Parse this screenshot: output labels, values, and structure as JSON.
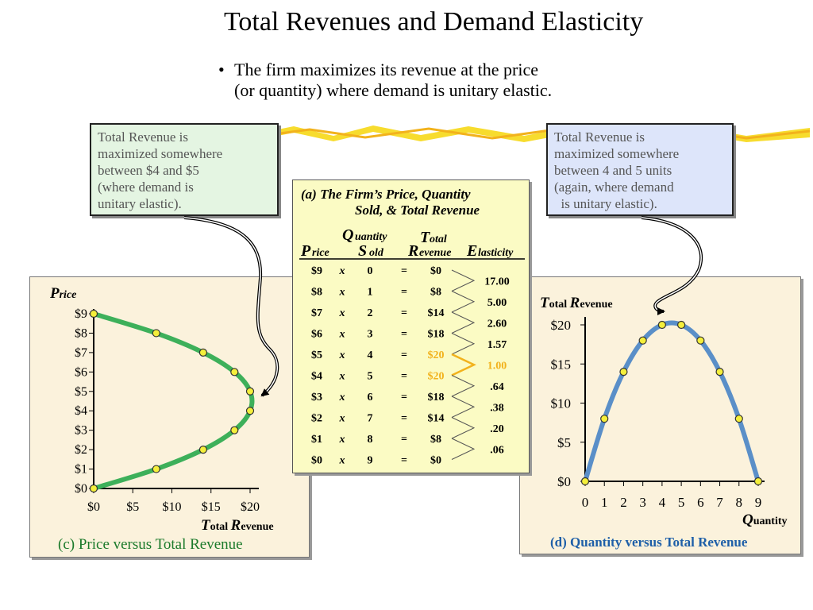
{
  "title": "Total Revenues and Demand Elasticity",
  "bullet": {
    "line1": "The firm maximizes its revenue at the price",
    "line2": "(or quantity) where demand is unitary elastic."
  },
  "callout_left": {
    "lines": [
      "Total Revenue is",
      "maximized somewhere",
      "between $4 and $5",
      "(where demand is",
      "unitary elastic)."
    ]
  },
  "callout_right": {
    "lines": [
      "Total Revenue is",
      "maximized somewhere",
      "between 4 and 5 units",
      "(again, where demand",
      "  is unitary elastic)."
    ]
  },
  "colors": {
    "green_line": "#3db05a",
    "blue_line": "#5a8fc8",
    "marker_fill": "#f4ef3b",
    "highlight_orange": "#f2b21c",
    "highlight_yellow": "#f7dc2e"
  },
  "table": {
    "title_line1": "(a) The Firm’s Price, Quantity",
    "title_line2": "Sold, & Total Revenue",
    "headers": {
      "price_big": "P",
      "price_small": "rice",
      "qty_big1": "Q",
      "qty_small1": "uantity",
      "qty_big2": "S",
      "qty_small2": "old",
      "tr_big1": "T",
      "tr_small1": "otal",
      "tr_big2": "R",
      "tr_small2": "evenue",
      "el_big": "E",
      "el_small": "lasticity"
    },
    "times_symbol": "x",
    "equals_symbol": "=",
    "rows": [
      {
        "price": "$9",
        "qty": "0",
        "tr": "$0",
        "highlight": false
      },
      {
        "price": "$8",
        "qty": "1",
        "tr": "$8",
        "highlight": false
      },
      {
        "price": "$7",
        "qty": "2",
        "tr": "$14",
        "highlight": false
      },
      {
        "price": "$6",
        "qty": "3",
        "tr": "$18",
        "highlight": false
      },
      {
        "price": "$5",
        "qty": "4",
        "tr": "$20",
        "highlight": true
      },
      {
        "price": "$4",
        "qty": "5",
        "tr": "$20",
        "highlight": true
      },
      {
        "price": "$3",
        "qty": "6",
        "tr": "$18",
        "highlight": false
      },
      {
        "price": "$2",
        "qty": "7",
        "tr": "$14",
        "highlight": false
      },
      {
        "price": "$1",
        "qty": "8",
        "tr": "$8",
        "highlight": false
      },
      {
        "price": "$0",
        "qty": "9",
        "tr": "$0",
        "highlight": false
      }
    ],
    "elasticities": [
      {
        "value": "17.00",
        "highlight": false
      },
      {
        "value": "5.00",
        "highlight": false
      },
      {
        "value": "2.60",
        "highlight": false
      },
      {
        "value": "1.57",
        "highlight": false
      },
      {
        "value": "1.00",
        "highlight": true
      },
      {
        "value": ".64",
        "highlight": false
      },
      {
        "value": ".38",
        "highlight": false
      },
      {
        "value": ".20",
        "highlight": false
      },
      {
        "value": ".06",
        "highlight": false
      }
    ]
  },
  "chart_data": [
    {
      "type": "line",
      "caption": "(c) Price versus Total Revenue",
      "x_label_big1": "T",
      "x_label_small1": "otal ",
      "x_label_big2": "R",
      "x_label_small2": "evenue",
      "y_label_big": "P",
      "y_label_small": "rice",
      "x_ticks": [
        "$0",
        "$5",
        "$10",
        "$15",
        "$20"
      ],
      "x_tick_values": [
        0,
        5,
        10,
        15,
        20
      ],
      "y_ticks": [
        "$0",
        "$1",
        "$2",
        "$3",
        "$4",
        "$5",
        "$6",
        "$7",
        "$8",
        "$9"
      ],
      "y_tick_values": [
        0,
        1,
        2,
        3,
        4,
        5,
        6,
        7,
        8,
        9
      ],
      "xlim": [
        0,
        20
      ],
      "ylim": [
        0,
        9
      ],
      "points": [
        {
          "x": 0,
          "y": 9
        },
        {
          "x": 8,
          "y": 8
        },
        {
          "x": 14,
          "y": 7
        },
        {
          "x": 18,
          "y": 6
        },
        {
          "x": 20,
          "y": 5
        },
        {
          "x": 20,
          "y": 4
        },
        {
          "x": 18,
          "y": 3
        },
        {
          "x": 14,
          "y": 2
        },
        {
          "x": 8,
          "y": 1
        },
        {
          "x": 0,
          "y": 0
        }
      ]
    },
    {
      "type": "line",
      "caption": "(d) Quantity versus Total Revenue",
      "x_label_big": "Q",
      "x_label_small": "uantity",
      "y_label_big1": "T",
      "y_label_small1": "otal ",
      "y_label_big2": "R",
      "y_label_small2": "evenue",
      "x_ticks": [
        "0",
        "1",
        "2",
        "3",
        "4",
        "5",
        "6",
        "7",
        "8",
        "9"
      ],
      "x_tick_values": [
        0,
        1,
        2,
        3,
        4,
        5,
        6,
        7,
        8,
        9
      ],
      "y_ticks": [
        "$0",
        "$5",
        "$10",
        "$15",
        "$20"
      ],
      "y_tick_values": [
        0,
        5,
        10,
        15,
        20
      ],
      "xlim": [
        0,
        9
      ],
      "ylim": [
        0,
        20
      ],
      "points": [
        {
          "x": 0,
          "y": 0
        },
        {
          "x": 1,
          "y": 8
        },
        {
          "x": 2,
          "y": 14
        },
        {
          "x": 3,
          "y": 18
        },
        {
          "x": 4,
          "y": 20
        },
        {
          "x": 5,
          "y": 20
        },
        {
          "x": 6,
          "y": 18
        },
        {
          "x": 7,
          "y": 14
        },
        {
          "x": 8,
          "y": 8
        },
        {
          "x": 9,
          "y": 0
        }
      ]
    }
  ]
}
